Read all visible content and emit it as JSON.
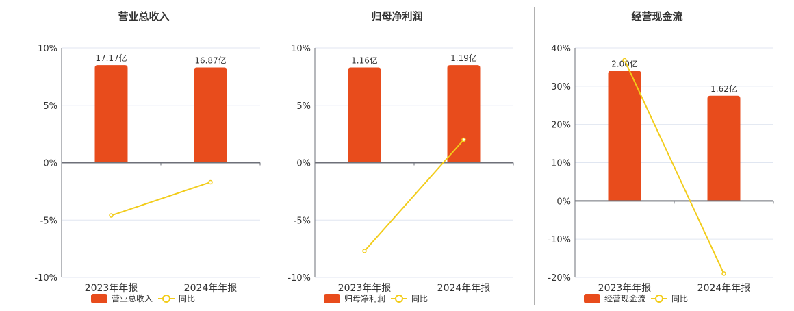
{
  "colors": {
    "bar": "#e84c1c",
    "line": "#f2cc1a",
    "axis": "#6e7079",
    "grid": "#e0e6f1",
    "divider": "#b0b0b0",
    "title": "#333333",
    "tick": "#333333"
  },
  "chart_data": [
    {
      "type": "bar+line",
      "title": "营业总收入",
      "categories": [
        "2023年年报",
        "2024年年报"
      ],
      "series": [
        {
          "name": "营业总收入",
          "kind": "bar",
          "labels": [
            "17.17亿",
            "16.87亿"
          ],
          "values_yi": [
            17.17,
            16.87
          ],
          "bar_height_pct": [
            8.5,
            8.3
          ]
        },
        {
          "name": "同比",
          "kind": "line",
          "values": [
            -4.6,
            -1.7
          ]
        }
      ],
      "yticks": [
        "10%",
        "5%",
        "0%",
        "-5%",
        "-10%"
      ],
      "ylim": [
        -10,
        10
      ],
      "ylabel": "",
      "xlabel": "",
      "legend": [
        "营业总收入",
        "同比"
      ],
      "legend_position": "bottom",
      "grid": true
    },
    {
      "type": "bar+line",
      "title": "归母净利润",
      "categories": [
        "2023年年报",
        "2024年年报"
      ],
      "series": [
        {
          "name": "归母净利润",
          "kind": "bar",
          "labels": [
            "1.16亿",
            "1.19亿"
          ],
          "values_yi": [
            1.16,
            1.19
          ],
          "bar_height_pct": [
            8.3,
            8.5
          ]
        },
        {
          "name": "同比",
          "kind": "line",
          "values": [
            -7.7,
            2.0
          ]
        }
      ],
      "yticks": [
        "10%",
        "5%",
        "0%",
        "-5%",
        "-10%"
      ],
      "ylim": [
        -10,
        10
      ],
      "ylabel": "",
      "xlabel": "",
      "legend": [
        "归母净利润",
        "同比"
      ],
      "legend_position": "bottom",
      "grid": true
    },
    {
      "type": "bar+line",
      "title": "经营现金流",
      "categories": [
        "2023年年报",
        "2024年年报"
      ],
      "series": [
        {
          "name": "经营现金流",
          "kind": "bar",
          "labels": [
            "2.00亿",
            "1.62亿"
          ],
          "values_yi": [
            2.0,
            1.62
          ],
          "bar_height_pct": [
            34,
            27.5
          ]
        },
        {
          "name": "同比",
          "kind": "line",
          "values": [
            36.8,
            -19.0
          ]
        }
      ],
      "yticks": [
        "40%",
        "30%",
        "20%",
        "10%",
        "0%",
        "-10%",
        "-20%"
      ],
      "ylim": [
        -20,
        40
      ],
      "ylabel": "",
      "xlabel": "",
      "legend": [
        "经营现金流",
        "同比"
      ],
      "legend_position": "bottom",
      "grid": true
    }
  ]
}
